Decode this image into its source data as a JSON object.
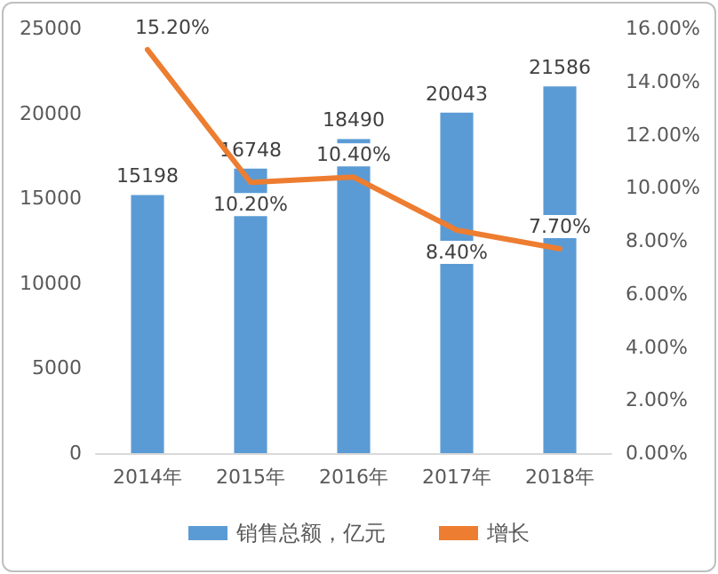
{
  "chart_data": {
    "type": "bar",
    "categories": [
      "2014年",
      "2015年",
      "2016年",
      "2017年",
      "2018年"
    ],
    "series": [
      {
        "name": "销售总额，亿元",
        "color": "#5b9bd5",
        "values": [
          15198,
          16748,
          18490,
          20043,
          21586
        ],
        "value_labels": [
          "15198",
          "16748",
          "18490",
          "20043",
          "21586"
        ]
      },
      {
        "name": "增长",
        "type": "line",
        "axis": "y2",
        "color": "#ed7d31",
        "values": [
          15.2,
          10.2,
          10.4,
          8.4,
          7.7
        ],
        "value_labels": [
          "15.20%",
          "10.20%",
          "10.40%",
          "8.40%",
          "7.70%"
        ]
      }
    ],
    "ylim": [
      0,
      25000
    ],
    "yticks": [
      0,
      5000,
      10000,
      15000,
      20000,
      25000
    ],
    "y2lim": [
      0,
      16
    ],
    "y2ticks": [
      {
        "value": 0,
        "label": "0.00%"
      },
      {
        "value": 2,
        "label": "2.00%"
      },
      {
        "value": 4,
        "label": "4.00%"
      },
      {
        "value": 6,
        "label": "6.00%"
      },
      {
        "value": 8,
        "label": "8.00%"
      },
      {
        "value": 10,
        "label": "10.00%"
      },
      {
        "value": 12,
        "label": "12.00%"
      },
      {
        "value": 14,
        "label": "14.00%"
      },
      {
        "value": 16,
        "label": "16.00%"
      }
    ],
    "legend": "bottom",
    "marker": "none",
    "line_style": "solid"
  }
}
